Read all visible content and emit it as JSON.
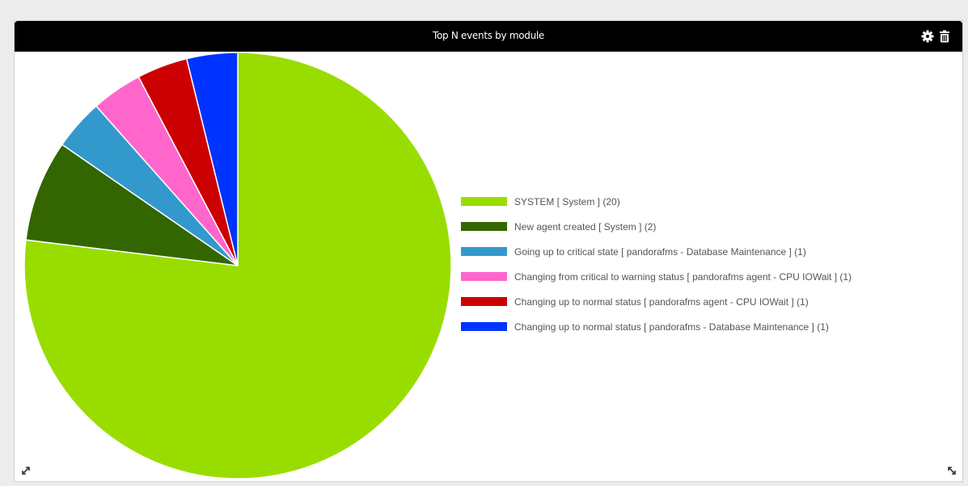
{
  "widget": {
    "title": "Top N events by module",
    "icons": [
      "gear-icon",
      "trash-icon",
      "resize-icon"
    ]
  },
  "chart_data": {
    "type": "pie",
    "categories": [
      "SYSTEM [ System ] (20)",
      "New agent created [ System ] (2)",
      "Going up to critical state [ pandorafms - Database Maintenance ] (1)",
      "Changing from critical to warning status [ pandorafms agent - CPU IOWait ] (1)",
      "Changing up to normal status [ pandorafms agent - CPU IOWait ] (1)",
      "Changing up to normal status [ pandorafms - Database Maintenance ] (1)"
    ],
    "values": [
      20,
      2,
      1,
      1,
      1,
      1
    ],
    "colors": [
      "#99dd00",
      "#336600",
      "#3399cc",
      "#ff66cc",
      "#cc0000",
      "#0033ff"
    ],
    "legend": "right"
  }
}
